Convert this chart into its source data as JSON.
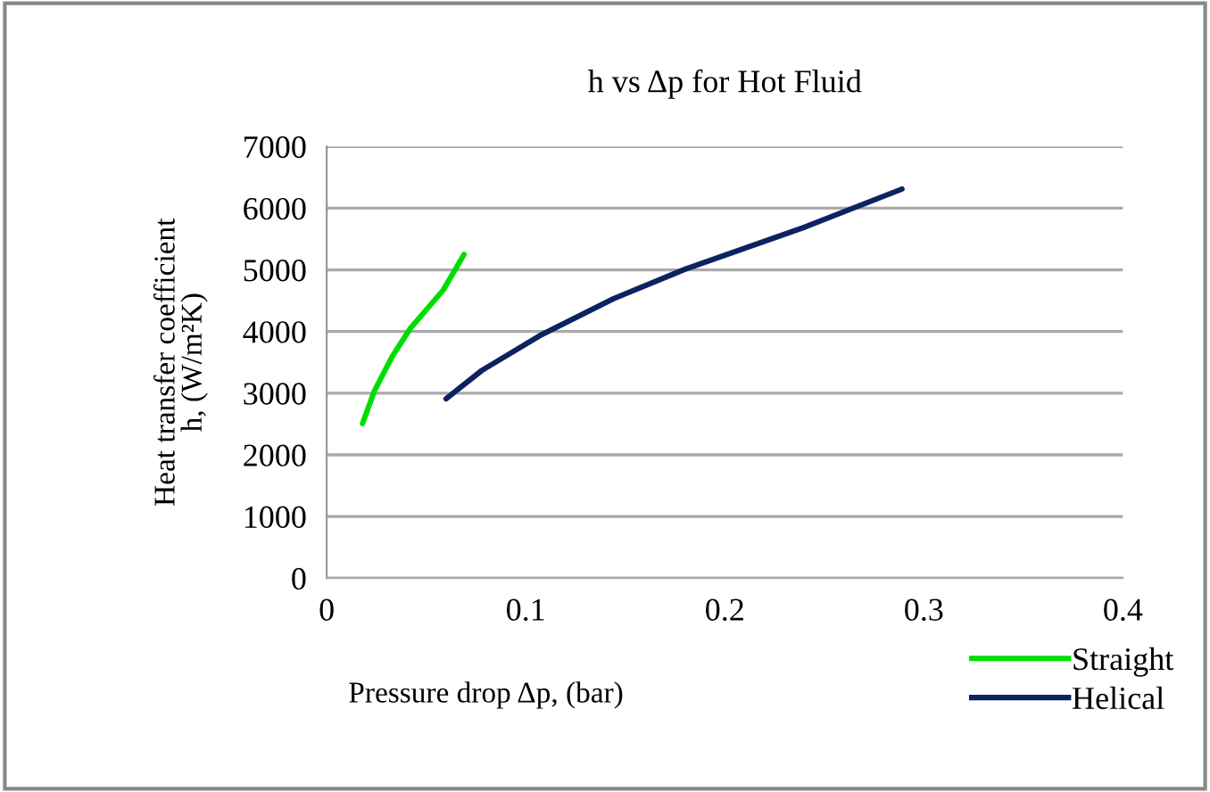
{
  "chart_data": {
    "type": "line",
    "title": "h vs Δp for Hot Fluid",
    "xlabel": "Pressure drop Δp, (bar)",
    "ylabel": "Heat transfer coefficient\nh, (W/m²K)",
    "xlim": [
      0,
      0.4
    ],
    "xticks": [
      0,
      0.1,
      0.2,
      0.3,
      0.4
    ],
    "ylim": [
      0,
      7000
    ],
    "yticks": [
      0,
      1000,
      2000,
      3000,
      4000,
      5000,
      6000,
      7000
    ],
    "grid": "y",
    "legend": "bottom right",
    "marker": "none",
    "line_style": "solid",
    "series": [
      {
        "name": "Straight",
        "color": "#00dd00",
        "x": [
          0.018,
          0.024,
          0.033,
          0.042,
          0.0585,
          0.069
        ],
        "values": [
          2506,
          3040,
          3600,
          4050,
          4670,
          5250
        ]
      },
      {
        "name": "Helical",
        "color": "#0d2260",
        "x": [
          0.06,
          0.078,
          0.108,
          0.144,
          0.18,
          0.239,
          0.289
        ],
        "values": [
          2910,
          3370,
          3950,
          4530,
          5010,
          5680,
          6310
        ]
      }
    ]
  }
}
